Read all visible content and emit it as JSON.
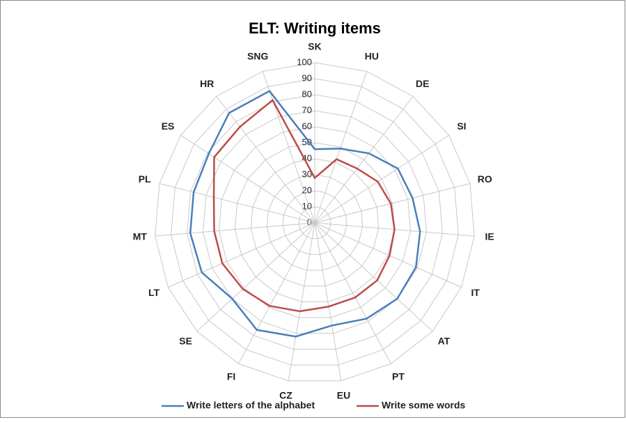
{
  "chart_data": {
    "type": "radar",
    "title": "ELT: Writing items",
    "categories": [
      "SK",
      "HU",
      "DE",
      "SI",
      "RO",
      "IE",
      "IT",
      "AT",
      "PT",
      "EU",
      "CZ",
      "FI",
      "SE",
      "LT",
      "MT",
      "PL",
      "ES",
      "HR",
      "SNG"
    ],
    "series": [
      {
        "name": "Write letters of the alphabet",
        "color": "#4a7ebb",
        "values": [
          46,
          49,
          55,
          62,
          63,
          66,
          69,
          70,
          68,
          65,
          72,
          76,
          70,
          77,
          78,
          78,
          79,
          87,
          87
        ]
      },
      {
        "name": "Write some words",
        "color": "#be4b48",
        "values": [
          28,
          42,
          43,
          47,
          49,
          50,
          51,
          53,
          53,
          53,
          56,
          59,
          61,
          63,
          63,
          65,
          75,
          76,
          81
        ]
      }
    ],
    "rlim": [
      0,
      100
    ],
    "rticks": [
      0,
      10,
      20,
      30,
      40,
      50,
      60,
      70,
      80,
      90,
      100
    ],
    "grid": true,
    "legend": "bottom"
  }
}
